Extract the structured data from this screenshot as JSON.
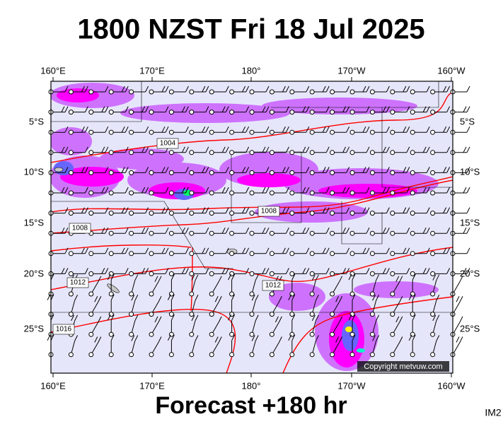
{
  "title": "1800 NZST Fri 18 Jul 2025",
  "longitude_labels": [
    "160°E",
    "170°E",
    "180°",
    "170°W",
    "160°W"
  ],
  "latitude_labels": [
    "5°S",
    "10°S",
    "15°S",
    "20°S",
    "25°S"
  ],
  "isobar_labels": [
    "1004",
    "1008",
    "1008",
    "1012",
    "1012",
    "1016"
  ],
  "copyright": "Copyright metvuw.com",
  "footer": "Forecast +180 hr",
  "image_code": "IM2"
}
